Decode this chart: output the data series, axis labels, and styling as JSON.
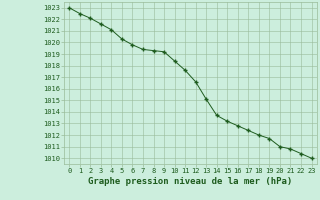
{
  "x": [
    0,
    1,
    2,
    3,
    4,
    5,
    6,
    7,
    8,
    9,
    10,
    11,
    12,
    13,
    14,
    15,
    16,
    17,
    18,
    19,
    20,
    21,
    22,
    23
  ],
  "y": [
    1023.0,
    1022.5,
    1022.1,
    1021.6,
    1021.1,
    1020.3,
    1019.8,
    1019.4,
    1019.3,
    1019.2,
    1018.4,
    1017.6,
    1016.6,
    1015.1,
    1013.7,
    1013.2,
    1012.8,
    1012.4,
    1012.0,
    1011.7,
    1011.0,
    1010.8,
    1010.4,
    1010.0
  ],
  "line_color": "#1e5c1e",
  "marker": "+",
  "marker_size": 3.5,
  "marker_linewidth": 1.0,
  "bg_color": "#cceedd",
  "grid_color": "#99bb99",
  "title": "Graphe pression niveau de la mer (hPa)",
  "title_fontsize": 6.5,
  "xlim": [
    -0.5,
    23.5
  ],
  "ylim": [
    1009.5,
    1023.5
  ],
  "ytick_min": 1010,
  "ytick_max": 1023,
  "xtick_labels": [
    "0",
    "1",
    "2",
    "3",
    "4",
    "5",
    "6",
    "7",
    "8",
    "9",
    "10",
    "11",
    "12",
    "13",
    "14",
    "15",
    "16",
    "17",
    "18",
    "19",
    "20",
    "21",
    "22",
    "23"
  ],
  "tick_fontsize": 5.0,
  "title_fontweight": "bold",
  "linewidth": 0.7
}
